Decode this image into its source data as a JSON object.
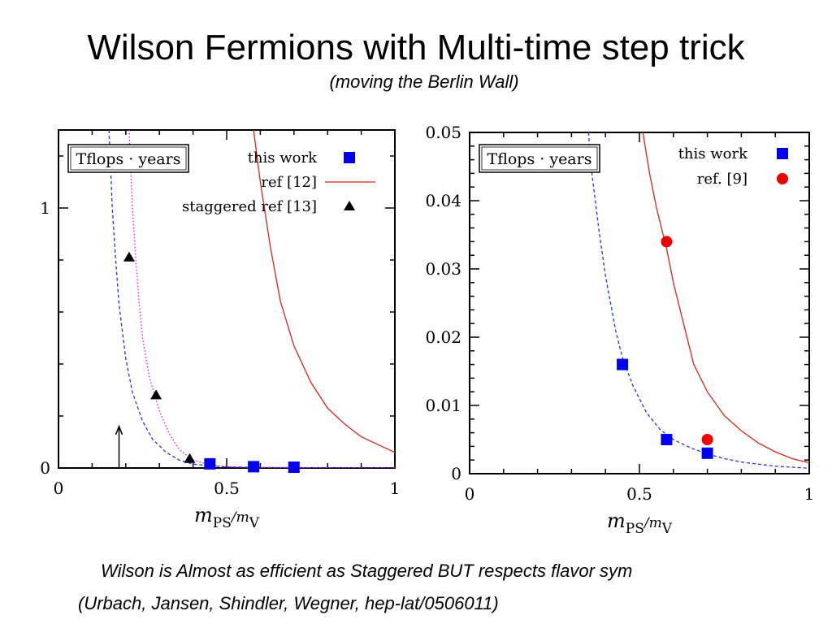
{
  "slide": {
    "title": "Wilson Fermions with Multi-time step trick",
    "subtitle": "(moving the Berlin Wall)",
    "footer_line1": "Wilson is Almost as efficient as Staggered BUT respects flavor sym",
    "footer_line2": "(Urbach, Jansen, Shindler, Wegner, hep-lat/0506011)"
  },
  "chart_data": [
    {
      "type": "scatter",
      "boxed_label": "Tflops · years",
      "xlabel": "m_PS/m_V",
      "xlim": [
        0,
        1
      ],
      "ylim": [
        0,
        1.3
      ],
      "x_ticks": [
        "0",
        "0.5",
        "1"
      ],
      "y_ticks": [
        "0",
        "1"
      ],
      "y_tick_values": [
        0,
        1
      ],
      "legend_position": "top-right",
      "series": [
        {
          "name": "this work",
          "kind": "points",
          "marker": "square",
          "color": "#0000ee",
          "points": [
            [
              0.45,
              0.016
            ],
            [
              0.58,
              0.005
            ],
            [
              0.7,
              0.003
            ]
          ]
        },
        {
          "name": "ref [12]",
          "kind": "line",
          "color": "#dd2222",
          "points": [
            [
              0.58,
              1.3
            ],
            [
              0.6,
              1.1
            ],
            [
              0.63,
              0.85
            ],
            [
              0.66,
              0.64
            ],
            [
              0.7,
              0.47
            ],
            [
              0.75,
              0.33
            ],
            [
              0.8,
              0.23
            ],
            [
              0.85,
              0.17
            ],
            [
              0.9,
              0.12
            ],
            [
              0.95,
              0.09
            ],
            [
              1.0,
              0.06
            ]
          ]
        },
        {
          "name": "staggered ref [13]",
          "kind": "points",
          "marker": "triangle",
          "color": "#000000",
          "points": [
            [
              0.21,
              0.81
            ],
            [
              0.29,
              0.28
            ],
            [
              0.39,
              0.035
            ]
          ]
        },
        {
          "name": "",
          "kind": "line",
          "dash": "dashed",
          "color": "#2233ee",
          "points": [
            [
              0.15,
              1.3
            ],
            [
              0.16,
              1.0
            ],
            [
              0.17,
              0.8
            ],
            [
              0.18,
              0.63
            ],
            [
              0.2,
              0.42
            ],
            [
              0.22,
              0.29
            ],
            [
              0.25,
              0.18
            ],
            [
              0.28,
              0.11
            ],
            [
              0.32,
              0.06
            ],
            [
              0.36,
              0.03
            ],
            [
              0.4,
              0.015
            ],
            [
              0.45,
              0.008
            ],
            [
              0.5,
              0.004
            ],
            [
              0.6,
              0.002
            ],
            [
              0.8,
              0.001
            ],
            [
              1.0,
              0.0
            ]
          ]
        },
        {
          "name": "",
          "kind": "line",
          "dash": "dotted",
          "color": "#ee11ee",
          "points": [
            [
              0.21,
              1.3
            ],
            [
              0.22,
              1.0
            ],
            [
              0.23,
              0.8
            ],
            [
              0.24,
              0.63
            ],
            [
              0.25,
              0.5
            ],
            [
              0.27,
              0.35
            ],
            [
              0.3,
              0.22
            ],
            [
              0.33,
              0.13
            ],
            [
              0.36,
              0.07
            ],
            [
              0.4,
              0.03
            ],
            [
              0.45,
              0.012
            ],
            [
              0.5,
              0.005
            ],
            [
              0.6,
              0.002
            ],
            [
              0.8,
              0.001
            ],
            [
              1.0,
              0.0
            ]
          ]
        }
      ],
      "annotations": [
        {
          "type": "arrow",
          "x": 0.18,
          "y_from": 0.0,
          "y_to": 0.16
        }
      ]
    },
    {
      "type": "scatter",
      "boxed_label": "Tflops · years",
      "xlabel": "m_PS/m_V",
      "xlim": [
        0,
        1
      ],
      "ylim": [
        0,
        0.05
      ],
      "x_ticks": [
        "0",
        "0.5",
        "1"
      ],
      "y_ticks": [
        "0",
        "0.01",
        "0.02",
        "0.03",
        "0.04",
        "0.05"
      ],
      "y_tick_values": [
        0,
        0.01,
        0.02,
        0.03,
        0.04,
        0.05
      ],
      "legend_position": "top-right",
      "series": [
        {
          "name": "this work",
          "kind": "points",
          "marker": "square",
          "color": "#0000ee",
          "points": [
            [
              0.45,
              0.016
            ],
            [
              0.58,
              0.005
            ],
            [
              0.7,
              0.003
            ]
          ]
        },
        {
          "name": "ref. [9]",
          "kind": "points",
          "marker": "circle",
          "color": "#ee0000",
          "points": [
            [
              0.58,
              0.034
            ],
            [
              0.7,
              0.005
            ]
          ]
        },
        {
          "name": "",
          "kind": "line",
          "dash": "dashed",
          "color": "#2233ee",
          "points": [
            [
              0.35,
              0.05
            ],
            [
              0.36,
              0.044
            ],
            [
              0.38,
              0.036
            ],
            [
              0.4,
              0.029
            ],
            [
              0.43,
              0.021
            ],
            [
              0.45,
              0.017
            ],
            [
              0.48,
              0.013
            ],
            [
              0.52,
              0.009
            ],
            [
              0.56,
              0.0065
            ],
            [
              0.6,
              0.005
            ],
            [
              0.65,
              0.0038
            ],
            [
              0.7,
              0.0029
            ],
            [
              0.75,
              0.0022
            ],
            [
              0.8,
              0.0017
            ],
            [
              0.9,
              0.0011
            ],
            [
              1.0,
              0.0008
            ]
          ]
        },
        {
          "name": "",
          "kind": "line",
          "color": "#dd2222",
          "points": [
            [
              0.51,
              0.05
            ],
            [
              0.53,
              0.044
            ],
            [
              0.55,
              0.039
            ],
            [
              0.58,
              0.033
            ],
            [
              0.6,
              0.028
            ],
            [
              0.63,
              0.022
            ],
            [
              0.66,
              0.016
            ],
            [
              0.7,
              0.012
            ],
            [
              0.75,
              0.0085
            ],
            [
              0.8,
              0.0063
            ],
            [
              0.85,
              0.0045
            ],
            [
              0.9,
              0.0032
            ],
            [
              0.95,
              0.0022
            ],
            [
              1.0,
              0.0016
            ]
          ]
        }
      ]
    }
  ]
}
